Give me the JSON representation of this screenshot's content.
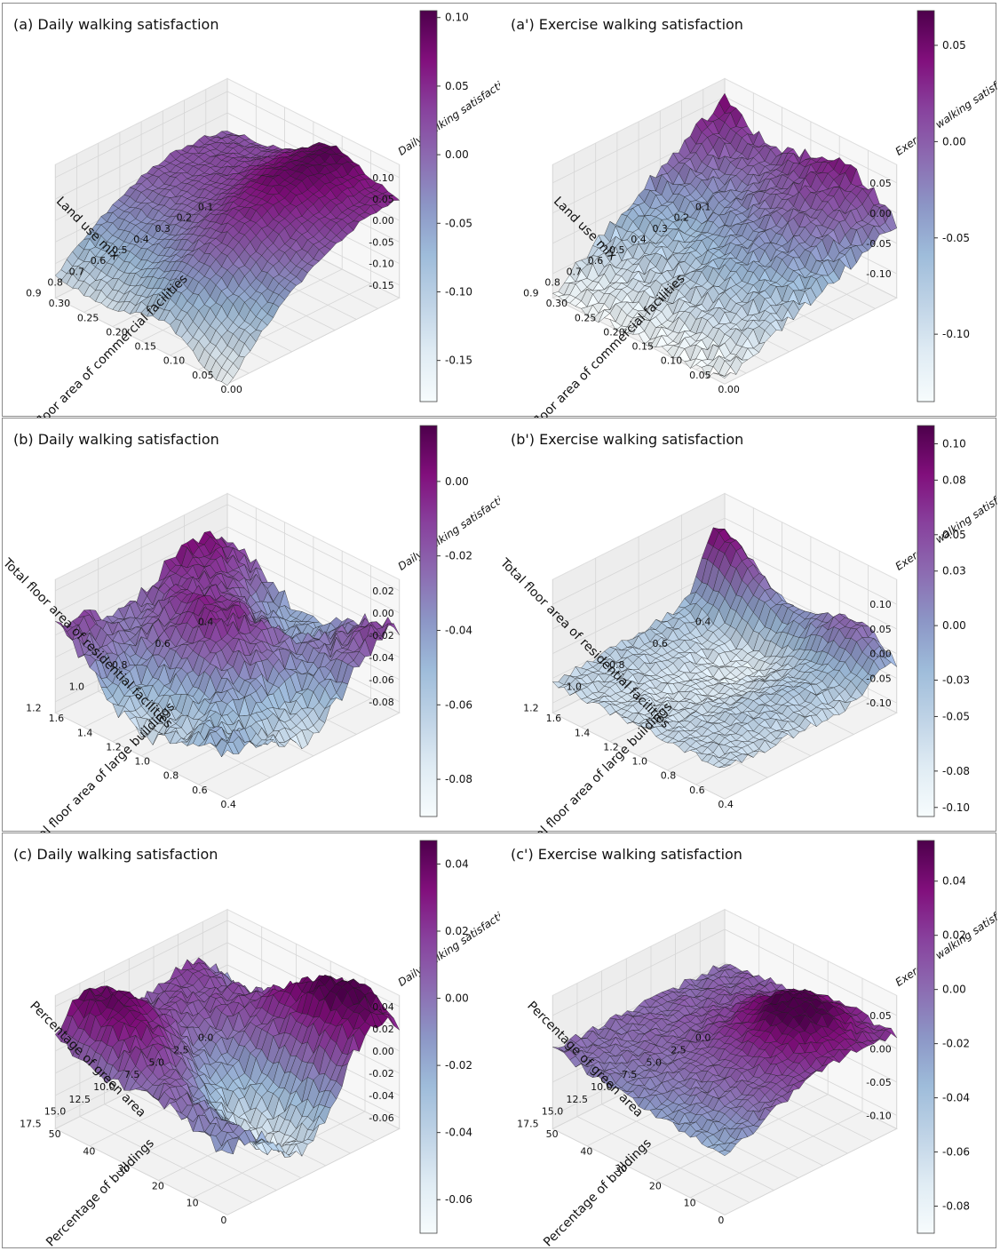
{
  "colormap": {
    "name": "BuPu",
    "stops": [
      "#f7fcfd",
      "#e0ecf4",
      "#bfd3e6",
      "#9ebcda",
      "#8c96c6",
      "#8c6bb1",
      "#88419d",
      "#810f7c",
      "#4d004b"
    ]
  },
  "chart_data": [
    {
      "id": "a",
      "type": "surface3d",
      "title": "(a) Daily walking satisfaction",
      "zlabel": "Daily walking satisfaction",
      "xlabel": "Land use mix",
      "ylabel": "Total floor area of commercial facilities",
      "xticks": [
        "0.1",
        "0.2",
        "0.3",
        "0.4",
        "0.5",
        "0.6",
        "0.7",
        "0.8",
        "0.9"
      ],
      "yticks": [
        "0.00",
        "0.05",
        "0.10",
        "0.15",
        "0.20",
        "0.25",
        "0.30"
      ],
      "zticks": [
        "0.10",
        "0.05",
        "0.00",
        "-0.05",
        "-0.10",
        "-0.15"
      ],
      "zlim": [
        -0.18,
        0.13
      ],
      "colorbar_ticks": [
        "0.10",
        "0.05",
        "0.00",
        "-0.05",
        "-0.10",
        "-0.15"
      ],
      "clim": [
        -0.18,
        0.105
      ],
      "shape": "ridge"
    },
    {
      "id": "a2",
      "type": "surface3d",
      "title": "(a') Exercise walking satisfaction",
      "zlabel": "Exercise walking satisfaction",
      "xlabel": "Land use mix",
      "ylabel": "Total floor area of commercial facilities",
      "xticks": [
        "0.1",
        "0.2",
        "0.3",
        "0.4",
        "0.5",
        "0.6",
        "0.7",
        "0.8",
        "0.9"
      ],
      "yticks": [
        "0.00",
        "0.05",
        "0.10",
        "0.15",
        "0.20",
        "0.25",
        "0.30"
      ],
      "zticks": [
        "0.05",
        "0.00",
        "-0.05",
        "-0.10"
      ],
      "zlim": [
        -0.14,
        0.08
      ],
      "colorbar_ticks": [
        "0.05",
        "0.00",
        "-0.05",
        "-0.10"
      ],
      "clim": [
        -0.135,
        0.068
      ],
      "shape": "slope"
    },
    {
      "id": "b",
      "type": "surface3d",
      "title": "(b) Daily walking satisfaction",
      "zlabel": "Daily walking satisfaction",
      "xlabel": "Total floor area of residential facilities",
      "ylabel": "Total floor area of large buildings",
      "xticks": [
        "0.4",
        "0.6",
        "0.8",
        "1.0",
        "1.2"
      ],
      "yticks": [
        "0.4",
        "0.6",
        "0.8",
        "1.0",
        "1.2",
        "1.4",
        "1.6"
      ],
      "zticks": [
        "0.02",
        "0.00",
        "-0.02",
        "-0.04",
        "-0.06",
        "-0.08"
      ],
      "zlim": [
        -0.09,
        0.03
      ],
      "colorbar_ticks": [
        "0.00",
        "-0.02",
        "-0.04",
        "-0.06",
        "-0.08"
      ],
      "clim": [
        -0.09,
        0.015
      ],
      "shape": "bumps"
    },
    {
      "id": "b2",
      "type": "surface3d",
      "title": "(b') Exercise walking satisfaction",
      "zlabel": "Exercise walking satisfaction",
      "xlabel": "Total floor area of residential facilities",
      "ylabel": "Total floor area of large buildings",
      "xticks": [
        "0.4",
        "0.6",
        "0.8",
        "1.0",
        "1.2"
      ],
      "yticks": [
        "0.4",
        "0.6",
        "0.8",
        "1.0",
        "1.2",
        "1.4",
        "1.6"
      ],
      "zticks": [
        "0.10",
        "0.05",
        "0.00",
        "-0.05",
        "-0.10"
      ],
      "zlim": [
        -0.12,
        0.15
      ],
      "colorbar_ticks": [
        "0.10",
        "0.08",
        "0.05",
        "0.03",
        "0.00",
        "-0.03",
        "-0.05",
        "-0.08",
        "-0.10"
      ],
      "clim": [
        -0.105,
        0.11
      ],
      "shape": "wall"
    },
    {
      "id": "c",
      "type": "surface3d",
      "title": "(c) Daily walking satisfaction",
      "zlabel": "Daily walking satisfaction",
      "xlabel": "Percentage of green area",
      "ylabel": "Percentage of buildings",
      "xticks": [
        "0.0",
        "2.5",
        "5.0",
        "7.5",
        "10.0",
        "12.5",
        "15.0",
        "17.5"
      ],
      "yticks": [
        "0",
        "10",
        "20",
        "30",
        "40",
        "50"
      ],
      "zticks": [
        "0.04",
        "0.02",
        "0.00",
        "-0.02",
        "-0.04",
        "-0.06"
      ],
      "zlim": [
        -0.07,
        0.05
      ],
      "colorbar_ticks": [
        "0.04",
        "0.02",
        "0.00",
        "-0.02",
        "-0.04",
        "-0.06"
      ],
      "clim": [
        -0.07,
        0.047
      ],
      "shape": "basin"
    },
    {
      "id": "c2",
      "type": "surface3d",
      "title": "(c') Exercise walking satisfaction",
      "zlabel": "Exercise walking satisfaction",
      "xlabel": "Percentage of green area",
      "ylabel": "Percentage of buildings",
      "xticks": [
        "0.0",
        "2.5",
        "5.0",
        "7.5",
        "10.0",
        "12.5",
        "15.0",
        "17.5"
      ],
      "yticks": [
        "0",
        "10",
        "20",
        "30",
        "40",
        "50"
      ],
      "zticks": [
        "0.05",
        "0.00",
        "-0.05",
        "-0.10"
      ],
      "zlim": [
        -0.12,
        0.08
      ],
      "colorbar_ticks": [
        "0.04",
        "0.02",
        "0.00",
        "-0.02",
        "-0.04",
        "-0.06",
        "-0.08"
      ],
      "clim": [
        -0.09,
        0.055
      ],
      "shape": "peak"
    }
  ]
}
